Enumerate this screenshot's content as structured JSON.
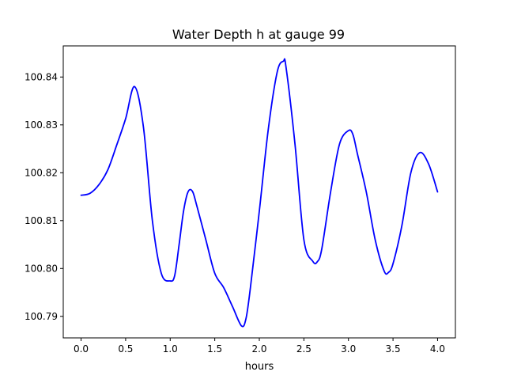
{
  "chart_data": {
    "type": "line",
    "title": "Water Depth h at gauge 99",
    "xlabel": "hours",
    "ylabel": "",
    "xlim": [
      -0.2,
      4.2
    ],
    "ylim": [
      100.7855,
      100.8465
    ],
    "x_ticks": [
      0.0,
      0.5,
      1.0,
      1.5,
      2.0,
      2.5,
      3.0,
      3.5,
      4.0
    ],
    "x_tick_labels": [
      "0.0",
      "0.5",
      "1.0",
      "1.5",
      "2.0",
      "2.5",
      "3.0",
      "3.5",
      "4.0"
    ],
    "y_ticks": [
      100.79,
      100.8,
      100.81,
      100.82,
      100.83,
      100.84
    ],
    "y_tick_labels": [
      "100.79",
      "100.80",
      "100.81",
      "100.82",
      "100.83",
      "100.84"
    ],
    "grid": false,
    "legend": "none",
    "series": [
      {
        "color": "#0000ff",
        "x": [
          0.0,
          0.1,
          0.2,
          0.3,
          0.4,
          0.5,
          0.6,
          0.7,
          0.8,
          0.9,
          1.0,
          1.05,
          1.1,
          1.15,
          1.2,
          1.25,
          1.3,
          1.4,
          1.5,
          1.6,
          1.7,
          1.8,
          1.85,
          1.9,
          2.0,
          2.1,
          2.2,
          2.27,
          2.3,
          2.4,
          2.5,
          2.6,
          2.65,
          2.7,
          2.8,
          2.9,
          3.0,
          3.05,
          3.1,
          3.2,
          3.3,
          3.4,
          3.45,
          3.5,
          3.6,
          3.7,
          3.8,
          3.9,
          4.0
        ],
        "y": [
          100.8153,
          100.8157,
          100.8175,
          100.8206,
          100.8258,
          100.8313,
          100.838,
          100.8295,
          100.81,
          100.799,
          100.7974,
          100.7985,
          100.805,
          100.812,
          100.816,
          100.8161,
          100.813,
          100.806,
          100.799,
          100.796,
          100.792,
          100.788,
          100.7895,
          100.796,
          100.812,
          100.829,
          100.841,
          100.8433,
          100.842,
          100.826,
          100.806,
          100.8015,
          100.8014,
          100.804,
          100.816,
          100.826,
          100.8288,
          100.828,
          100.824,
          100.816,
          100.806,
          100.7995,
          100.7992,
          100.801,
          100.809,
          100.82,
          100.8242,
          100.8218,
          100.816
        ]
      }
    ]
  }
}
